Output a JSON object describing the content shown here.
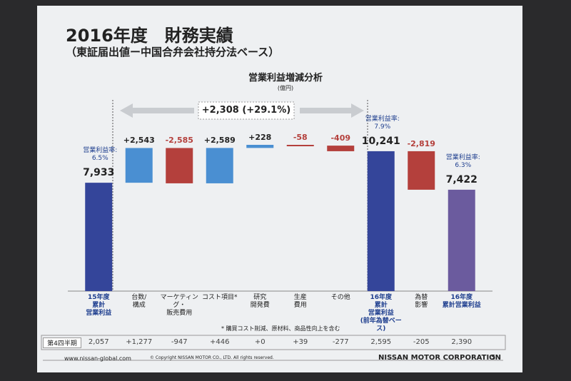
{
  "title": "2016年度　財務実績",
  "subtitle": "（東証届出値ー中国合弁会社持分法ベース）",
  "chart_data": {
    "type": "waterfall",
    "title": "営業利益増減分析",
    "unit": "(億円)",
    "categories": [
      "15年度\n累計\n営業利益",
      "台数/\n構成",
      "マーケティング・\n販売費用",
      "コスト項目*",
      "研究\n開発費",
      "生産\n費用",
      "その他",
      "16年度\n累計\n営業利益\n(前年為替ベース)",
      "為替\n影響",
      "16年度\n累計営業利益"
    ],
    "values": [
      7933,
      2543,
      -2585,
      2589,
      228,
      -58,
      -409,
      10241,
      -2819,
      7422
    ],
    "value_labels": [
      "7,933",
      "+2,543",
      "-2,585",
      "+2,589",
      "+228",
      "-58",
      "-409",
      "10,241",
      "-2,819",
      "7,422"
    ],
    "kinds": [
      "total",
      "delta",
      "delta",
      "delta",
      "delta",
      "delta",
      "delta",
      "total",
      "delta",
      "total"
    ],
    "colors": [
      "#34459a",
      "#4a8fd2",
      "#b4403c",
      "#4a8fd2",
      "#4a8fd2",
      "#b4403c",
      "#b4403c",
      "#34459a",
      "#b4403c",
      "#6b5b9e"
    ],
    "margin_labels": [
      "営業利益率:\n6.5%",
      null,
      null,
      null,
      null,
      null,
      null,
      "営業利益率:\n7.9%",
      null,
      "営業利益率:\n6.3%"
    ],
    "change_label": "+2,308 (+29.1%)",
    "footnote": "* 購買コスト削減、原材料、商品性向上を含む"
  },
  "q4_row": {
    "label": "第4四半期",
    "values": [
      "2,057",
      "+1,277",
      "-947",
      "+446",
      "+0",
      "+39",
      "-277",
      "2,595",
      "-205",
      "2,390"
    ]
  },
  "footer": {
    "url": "www.nissan-global.com",
    "copyright": "© Copyright NISSAN MOTOR CO., LTD. All rights reserved.",
    "company": "NISSAN MOTOR CORPORATION",
    "page": "5"
  }
}
